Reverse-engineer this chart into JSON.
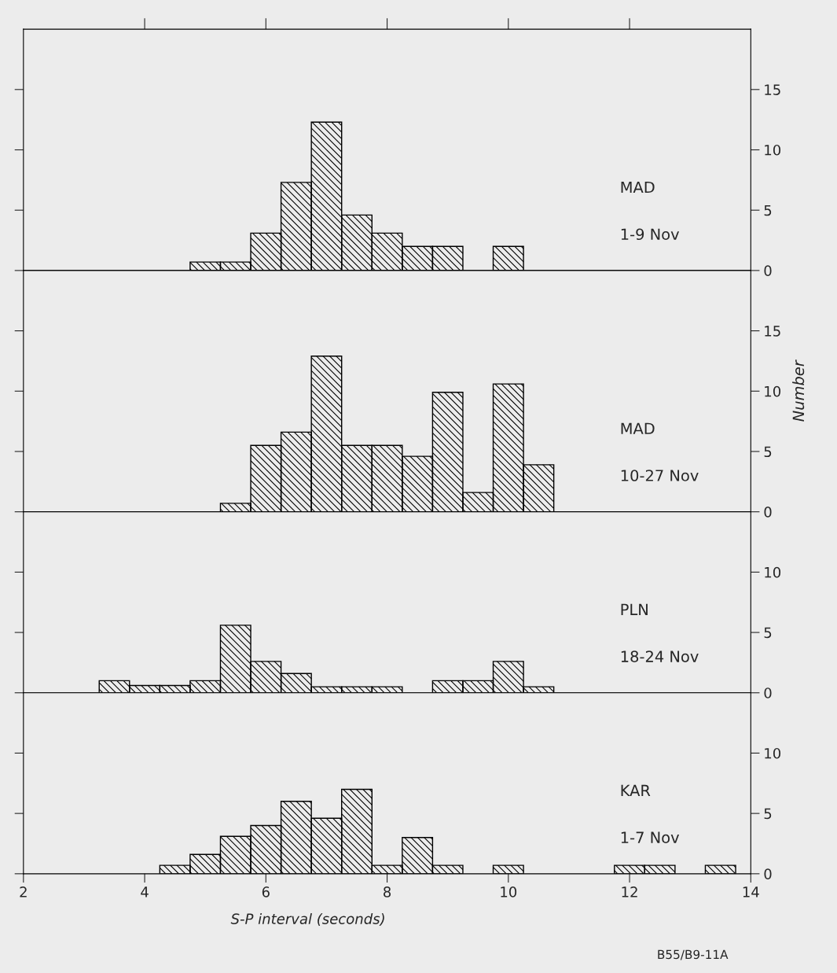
{
  "chart_data": [
    {
      "type": "histogram",
      "annotations": [
        "MAD",
        "1-9 Nov"
      ],
      "bins": [
        4.75,
        5.25,
        5.75,
        6.25,
        6.75,
        7.25,
        7.75,
        8.25,
        8.75,
        9.25,
        9.75,
        10.25
      ],
      "values": [
        0.7,
        0.7,
        3.1,
        7.3,
        12.3,
        4.6,
        3.1,
        2.0,
        2.0,
        null,
        2.0
      ],
      "color": "#000000",
      "xlim": [
        2,
        14
      ],
      "xticks": [
        {
          "value": 4,
          "label": null
        },
        {
          "value": 6,
          "label": null
        },
        {
          "value": 8,
          "label": null
        },
        {
          "value": 10,
          "label": null
        },
        {
          "value": 12,
          "label": null
        }
      ],
      "ylim": [
        0,
        20
      ],
      "yticks": [
        0,
        5,
        10,
        15
      ],
      "tick_labels": "y",
      "grid": false,
      "legend": false
    },
    {
      "type": "histogram",
      "annotations": [
        "MAD",
        "10-27 Nov"
      ],
      "ylabel": "Number",
      "bins": [
        5.25,
        5.75,
        6.25,
        6.75,
        7.25,
        7.75,
        8.25,
        8.75,
        9.25,
        9.75,
        10.25,
        10.75
      ],
      "values": [
        0.7,
        5.5,
        6.6,
        12.9,
        5.5,
        5.5,
        4.6,
        9.9,
        1.6,
        10.6,
        3.9
      ],
      "color": "#000000",
      "xlim": [
        2,
        14
      ],
      "ylim": [
        0,
        20
      ],
      "yticks": [
        0,
        5,
        10,
        15
      ],
      "tick_labels": "y",
      "grid": false,
      "legend": false
    },
    {
      "type": "histogram",
      "annotations": [
        "PLN",
        "18-24 Nov"
      ],
      "bins": [
        3.25,
        3.75,
        4.25,
        4.75,
        5.25,
        5.75,
        6.25,
        6.75,
        7.25,
        7.75,
        8.25,
        8.75,
        9.25,
        9.75,
        10.25,
        10.75
      ],
      "values": [
        1.0,
        0.6,
        0.6,
        1.0,
        5.6,
        2.6,
        1.6,
        0.5,
        0.5,
        0.5,
        null,
        1.0,
        1.0,
        2.6,
        0.5
      ],
      "color": "#000000",
      "xlim": [
        2,
        14
      ],
      "ylim": [
        0,
        15
      ],
      "yticks": [
        0,
        5,
        10
      ],
      "tick_labels": "y",
      "grid": false,
      "legend": false
    },
    {
      "type": "histogram",
      "annotations": [
        "KAR",
        "1-7 Nov",
        "B55/B9-11A"
      ],
      "xlabel": "S-P interval (seconds)",
      "bins": [
        4.25,
        4.75,
        5.25,
        5.75,
        6.25,
        6.75,
        7.25,
        7.75,
        8.25,
        8.75,
        9.25,
        9.75,
        10.25,
        10.75,
        11.25,
        11.75,
        12.25,
        12.75,
        13.25,
        13.75
      ],
      "values": [
        0.7,
        1.6,
        3.1,
        4.0,
        6.0,
        4.6,
        7.0,
        0.7,
        3.0,
        0.7,
        null,
        0.7,
        null,
        null,
        null,
        0.7,
        0.7,
        null,
        0.7
      ],
      "color": "#000000",
      "xlim": [
        2,
        14
      ],
      "xticks": [
        2,
        4,
        6,
        8,
        10,
        12,
        14
      ],
      "ylim": [
        0,
        15
      ],
      "yticks": [
        0,
        5,
        10
      ],
      "grid": false,
      "legend": false
    }
  ]
}
